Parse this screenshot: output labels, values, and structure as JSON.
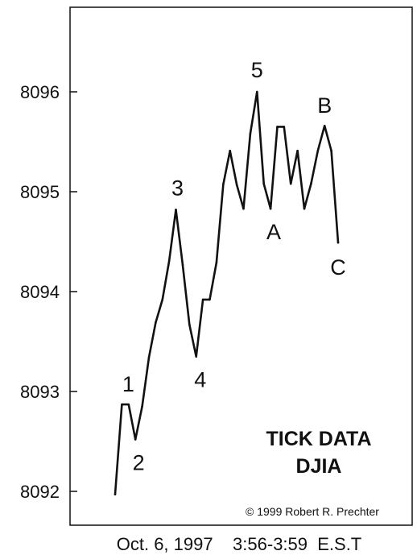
{
  "chart_data": {
    "type": "line",
    "title": [
      "TICK DATA",
      "DJIA"
    ],
    "xlabel": "Oct. 6, 1997    3:56-3:59  E.S.T",
    "ylabel": "",
    "credit": "© 1999 Robert R. Prechter",
    "ylim": [
      8091.7,
      8096.9
    ],
    "y_ticks": [
      8092,
      8093,
      8094,
      8095,
      8096
    ],
    "y_tick_labels": [
      "8092",
      "8093",
      "8094",
      "8095",
      "8096"
    ],
    "grid": false,
    "series": [
      {
        "values": [
          8091.97,
          8092.87,
          8092.87,
          8092.52,
          8092.85,
          8093.34,
          8093.69,
          8093.92,
          8094.31,
          8094.82,
          8094.27,
          8093.67,
          8093.35,
          8093.92,
          8093.92,
          8094.29,
          8095.07,
          8095.41,
          8095.07,
          8094.83,
          8095.58,
          8096.0,
          8095.08,
          8094.83,
          8095.65,
          8095.65,
          8095.08,
          8095.41,
          8094.83,
          8095.08,
          8095.41,
          8095.66,
          8095.41,
          8094.49
        ]
      }
    ],
    "annotations": [
      {
        "label": "1",
        "point_index": 1
      },
      {
        "label": "2",
        "point_index": 3
      },
      {
        "label": "3",
        "point_index": 9
      },
      {
        "label": "4",
        "point_index": 12
      },
      {
        "label": "5",
        "point_index": 21
      },
      {
        "label": "A",
        "point_index": 23
      },
      {
        "label": "B",
        "point_index": 31
      },
      {
        "label": "C",
        "point_index": 33
      }
    ]
  }
}
